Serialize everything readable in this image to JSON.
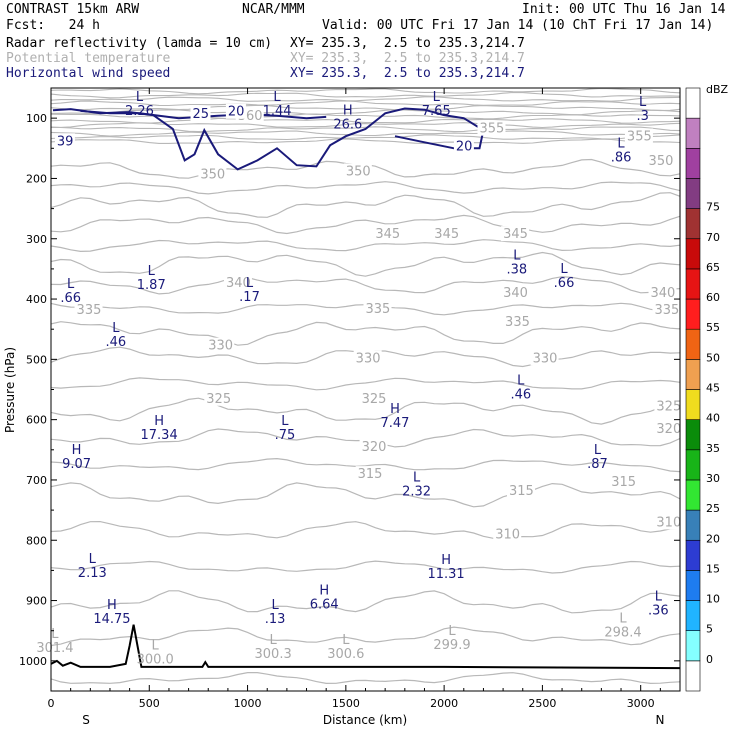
{
  "header": {
    "model": "CONTRAST 15km ARW",
    "center": "NCAR/MMM",
    "init": "Init: 00 UTC Thu 16 Jan 14",
    "fcst": "Fcst:   24 h",
    "valid": "Valid: 00 UTC Fri 17 Jan 14 (10 ChT Fri 17 Jan 14)",
    "fields": [
      {
        "name": "Radar reflectivity (lamda = 10 cm)",
        "xy": "XY= 235.3,  2.5 to 235.3,214.7"
      },
      {
        "name": "Potential temperature",
        "xy": "XY= 235.3,  2.5 to 235.3,214.7"
      },
      {
        "name": "Horizontal wind speed",
        "xy": "XY= 235.3,  2.5 to 235.3,214.7"
      }
    ]
  },
  "colorbar": {
    "unit": "dBZ",
    "levels": [
      "0",
      "5",
      "10",
      "15",
      "20",
      "25",
      "30",
      "35",
      "40",
      "45",
      "50",
      "55",
      "60",
      "65",
      "70",
      "75"
    ],
    "colors": [
      "#ffffff",
      "#84ffff",
      "#20b4ff",
      "#1e7cf0",
      "#2d3cd2",
      "#3880b8",
      "#32e632",
      "#18b418",
      "#0a8c0a",
      "#f0dc1e",
      "#f0a050",
      "#f06414",
      "#ff1e1e",
      "#e61414",
      "#c80a0a",
      "#a03232",
      "#823c82",
      "#a040a0",
      "#c080c0",
      "#ffffff"
    ]
  },
  "chart_data": {
    "type": "cross-section",
    "xlabel": "Distance (km)",
    "ylabel": "Pressure (hPa)",
    "xlim": [
      0,
      3200
    ],
    "ylim": [
      1050,
      50
    ],
    "xticks": [
      "0",
      "500",
      "1000",
      "1500",
      "2000",
      "2500",
      "3000"
    ],
    "yticks": [
      "100",
      "200",
      "300",
      "400",
      "500",
      "600",
      "700",
      "800",
      "900",
      "1000"
    ],
    "ends": {
      "left": "S",
      "right": "N"
    },
    "theta_labels": [
      {
        "text": "360",
        "x": 950,
        "p": 103
      },
      {
        "text": "355",
        "x": 2180,
        "p": 124
      },
      {
        "text": "355",
        "x": 2930,
        "p": 137
      },
      {
        "text": "350",
        "x": 760,
        "p": 200
      },
      {
        "text": "350",
        "x": 1500,
        "p": 195
      },
      {
        "text": "350",
        "x": 3040,
        "p": 178
      },
      {
        "text": "345",
        "x": 1650,
        "p": 299
      },
      {
        "text": "345",
        "x": 1950,
        "p": 299
      },
      {
        "text": "345",
        "x": 2300,
        "p": 299
      },
      {
        "text": "340",
        "x": 890,
        "p": 380
      },
      {
        "text": "340",
        "x": 2300,
        "p": 397
      },
      {
        "text": "340",
        "x": 3050,
        "p": 397
      },
      {
        "text": "335",
        "x": 130,
        "p": 425
      },
      {
        "text": "335",
        "x": 1600,
        "p": 423
      },
      {
        "text": "335",
        "x": 2310,
        "p": 445
      },
      {
        "text": "335",
        "x": 3070,
        "p": 425
      },
      {
        "text": "330",
        "x": 800,
        "p": 484
      },
      {
        "text": "330",
        "x": 1550,
        "p": 505
      },
      {
        "text": "330",
        "x": 2450,
        "p": 505
      },
      {
        "text": "325",
        "x": 790,
        "p": 572
      },
      {
        "text": "325",
        "x": 1580,
        "p": 572
      },
      {
        "text": "325",
        "x": 3080,
        "p": 585
      },
      {
        "text": "320",
        "x": 1580,
        "p": 652
      },
      {
        "text": "320",
        "x": 3080,
        "p": 622
      },
      {
        "text": "315",
        "x": 1560,
        "p": 697
      },
      {
        "text": "315",
        "x": 2330,
        "p": 725
      },
      {
        "text": "315",
        "x": 2850,
        "p": 710
      },
      {
        "text": "310",
        "x": 2260,
        "p": 797
      },
      {
        "text": "310",
        "x": 3080,
        "p": 777
      }
    ],
    "hl_markers": [
      {
        "kind": "L",
        "value": "2.26",
        "x": 450,
        "p": 95,
        "color": "blue"
      },
      {
        "kind": "L",
        "value": "1.44",
        "x": 1150,
        "p": 95,
        "color": "blue"
      },
      {
        "kind": "L",
        "value": "7.65",
        "x": 1960,
        "p": 95,
        "color": "blue"
      },
      {
        "kind": "L",
        "value": ".3",
        "x": 3010,
        "p": 103,
        "color": "blue"
      },
      {
        "kind": "H",
        "value": "26.6",
        "x": 1510,
        "p": 117,
        "color": "blue"
      },
      {
        "kind": "L",
        "value": ".86",
        "x": 2900,
        "p": 172,
        "color": "blue"
      },
      {
        "kind": "L",
        "value": ".38",
        "x": 2370,
        "p": 358,
        "color": "blue"
      },
      {
        "kind": "L",
        "value": ".66",
        "x": 2610,
        "p": 380,
        "color": "blue"
      },
      {
        "kind": "L",
        "value": "1.87",
        "x": 510,
        "p": 383,
        "color": "blue"
      },
      {
        "kind": "L",
        "value": ".66",
        "x": 100,
        "p": 405,
        "color": "blue"
      },
      {
        "kind": "L",
        "value": ".17",
        "x": 1010,
        "p": 403,
        "color": "blue"
      },
      {
        "kind": "L",
        "value": ".46",
        "x": 330,
        "p": 478,
        "color": "blue"
      },
      {
        "kind": "L",
        "value": ".46",
        "x": 2390,
        "p": 565,
        "color": "blue"
      },
      {
        "kind": "H",
        "value": "7.47",
        "x": 1750,
        "p": 612,
        "color": "blue"
      },
      {
        "kind": "H",
        "value": "17.34",
        "x": 550,
        "p": 632,
        "color": "blue"
      },
      {
        "kind": "L",
        "value": ".75",
        "x": 1190,
        "p": 632,
        "color": "blue"
      },
      {
        "kind": "H",
        "value": "9.07",
        "x": 130,
        "p": 680,
        "color": "blue"
      },
      {
        "kind": "L",
        "value": ".87",
        "x": 2780,
        "p": 680,
        "color": "blue"
      },
      {
        "kind": "L",
        "value": "2.32",
        "x": 1860,
        "p": 726,
        "color": "blue"
      },
      {
        "kind": "H",
        "value": "11.31",
        "x": 2010,
        "p": 863,
        "color": "blue"
      },
      {
        "kind": "L",
        "value": "2.13",
        "x": 210,
        "p": 861,
        "color": "blue"
      },
      {
        "kind": "H",
        "value": "14.75",
        "x": 310,
        "p": 937,
        "color": "blue"
      },
      {
        "kind": "H",
        "value": "6.64",
        "x": 1390,
        "p": 913,
        "color": "blue"
      },
      {
        "kind": "L",
        "value": ".13",
        "x": 1140,
        "p": 937,
        "color": "blue"
      },
      {
        "kind": "L",
        "value": ".36",
        "x": 3090,
        "p": 923,
        "color": "blue"
      },
      {
        "kind": "L",
        "value": "301.4",
        "x": 20,
        "p": 985,
        "color": "grey"
      },
      {
        "kind": "L",
        "value": "300.0",
        "x": 530,
        "p": 1004,
        "color": "grey"
      },
      {
        "kind": "L",
        "value": "300.3",
        "x": 1130,
        "p": 995,
        "color": "grey"
      },
      {
        "kind": "L",
        "value": "300.6",
        "x": 1500,
        "p": 995,
        "color": "grey"
      },
      {
        "kind": "L",
        "value": "299.9",
        "x": 2040,
        "p": 980,
        "color": "grey"
      },
      {
        "kind": "L",
        "value": "298.4",
        "x": 2910,
        "p": 960,
        "color": "grey"
      }
    ],
    "wind_labels": [
      {
        "text": "25",
        "x": 720,
        "p": 100
      },
      {
        "text": "20",
        "x": 900,
        "p": 96
      },
      {
        "text": "20",
        "x": 2060,
        "p": 154
      },
      {
        "text": "39",
        "x": 30,
        "p": 145
      }
    ]
  }
}
